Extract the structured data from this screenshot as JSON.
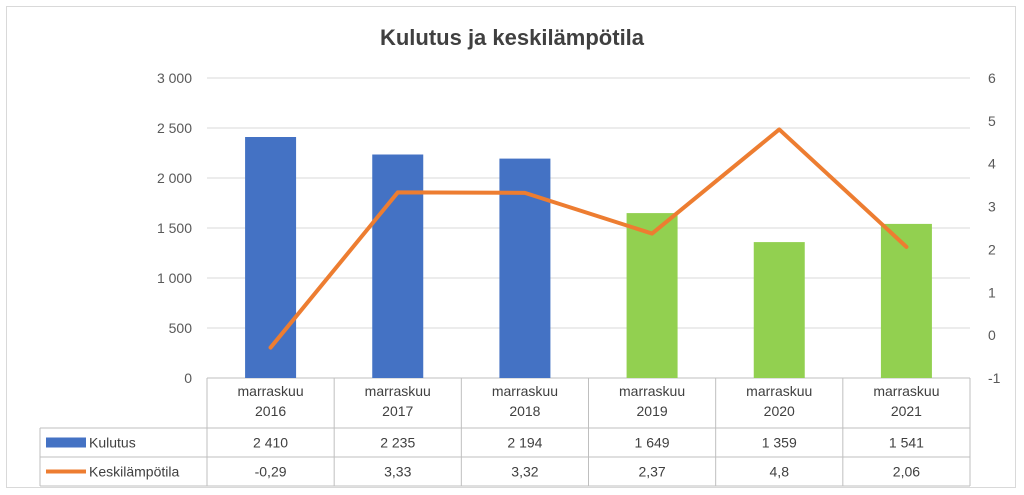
{
  "chart_data": {
    "type": "bar",
    "title": "Kulutus ja keskilämpötila",
    "categories": [
      [
        "marraskuu",
        "2016"
      ],
      [
        "marraskuu",
        "2017"
      ],
      [
        "marraskuu",
        "2018"
      ],
      [
        "marraskuu",
        "2019"
      ],
      [
        "marraskuu",
        "2020"
      ],
      [
        "marraskuu",
        "2021"
      ]
    ],
    "y_left": {
      "ylim": [
        0,
        3000
      ],
      "ticks": [
        0,
        500,
        1000,
        1500,
        2000,
        2500,
        3000
      ],
      "tick_labels": [
        "0",
        "500",
        "1 000",
        "1 500",
        "2 000",
        "2 500",
        "3 000"
      ]
    },
    "y_right": {
      "ylim": [
        -1,
        6
      ],
      "ticks": [
        -1,
        0,
        1,
        2,
        3,
        4,
        5,
        6
      ],
      "tick_labels": [
        "-1",
        "0",
        "1",
        "2",
        "3",
        "4",
        "5",
        "6"
      ]
    },
    "grid": true,
    "legend": "data-table",
    "series": [
      {
        "name": "Kulutus",
        "type": "bar",
        "axis": "left",
        "values": [
          2410,
          2235,
          2194,
          1649,
          1359,
          1541
        ],
        "value_labels": [
          "2 410",
          "2 235",
          "2 194",
          "1 649",
          "1 359",
          "1 541"
        ],
        "color": "#4472c4",
        "point_colors": [
          "#4472c4",
          "#4472c4",
          "#4472c4",
          "#92d050",
          "#92d050",
          "#92d050"
        ]
      },
      {
        "name": "Keskilämpötila",
        "type": "line",
        "axis": "right",
        "values": [
          -0.29,
          3.33,
          3.32,
          2.37,
          4.8,
          2.06
        ],
        "value_labels": [
          "-0,29",
          "3,33",
          "3,32",
          "2,37",
          "4,8",
          "2,06"
        ],
        "color": "#ed7d31"
      }
    ]
  }
}
